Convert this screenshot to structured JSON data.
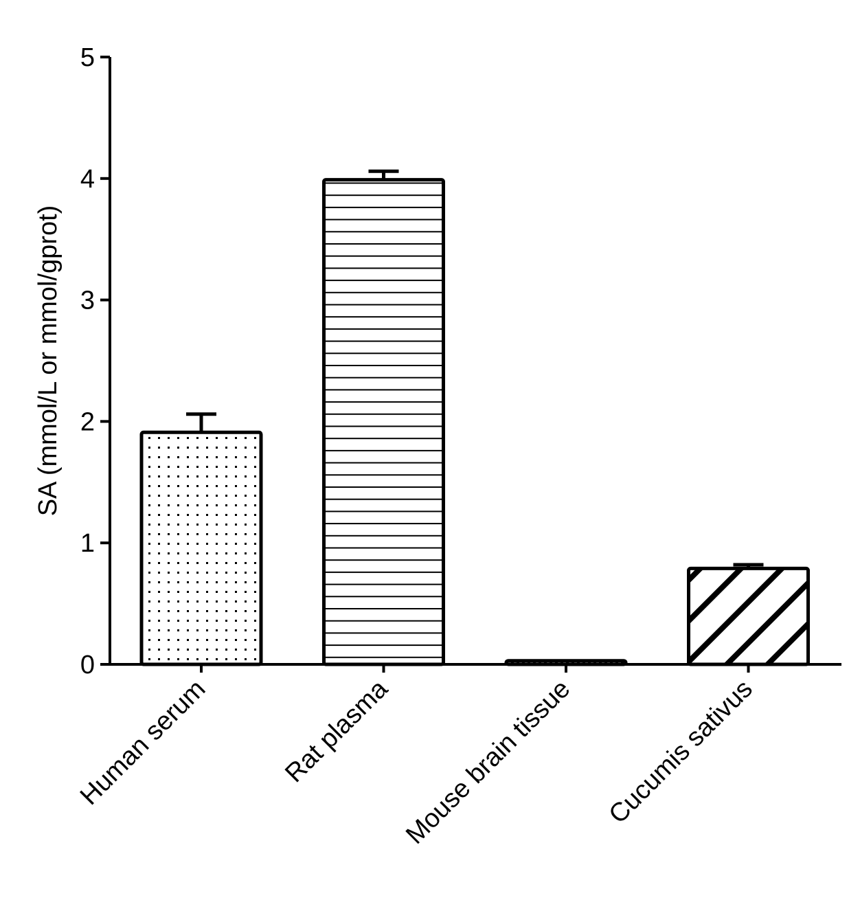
{
  "chart_data": {
    "type": "bar",
    "title": "",
    "xlabel": "",
    "ylabel": "SA (mmol/L or mmol/gprot)",
    "ylim": [
      0,
      5
    ],
    "yticks": [
      "0",
      "1",
      "2",
      "3",
      "4",
      "5"
    ],
    "categories": [
      "Human serum",
      "Rat plasma",
      "Mouse brain tissue",
      "Cucumis sativus"
    ],
    "values": [
      1.91,
      3.99,
      0.03,
      0.79
    ],
    "errors": [
      0.15,
      0.07,
      0.0,
      0.03
    ],
    "fill_patterns": [
      "dots",
      "horizontal-lines",
      "checker",
      "diagonal-stripes"
    ],
    "grid": false,
    "colors": {
      "stroke": "#000000",
      "background": "#ffffff"
    }
  }
}
